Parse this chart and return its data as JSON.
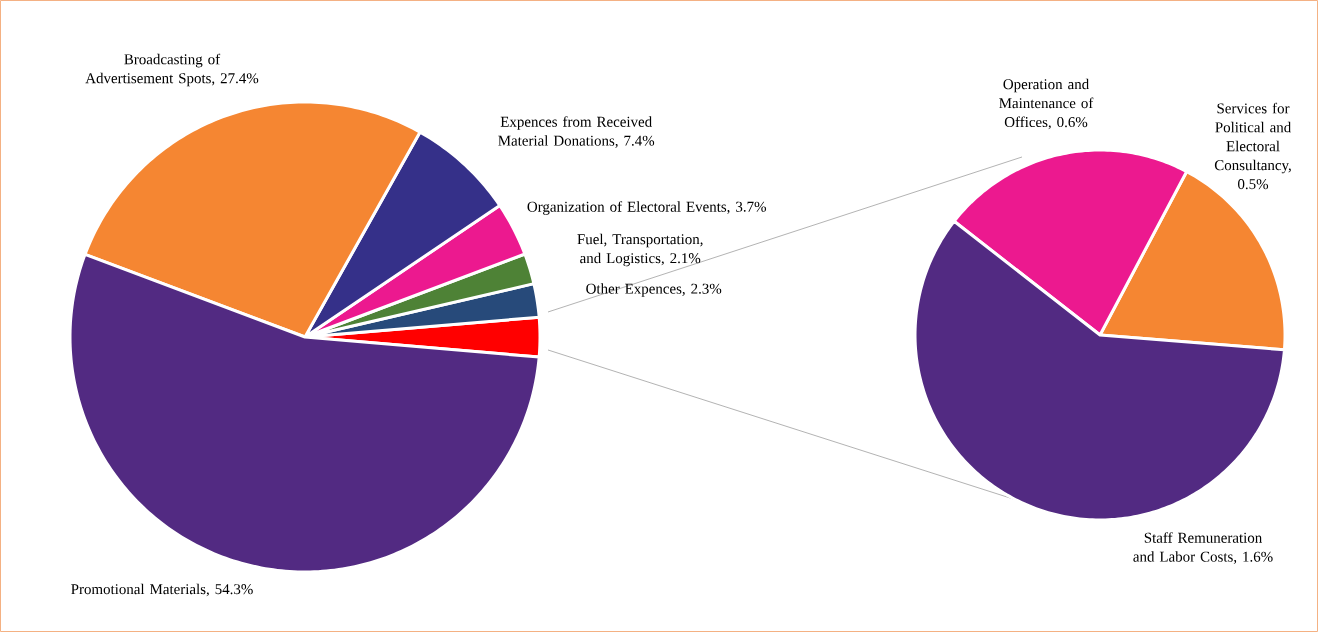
{
  "chart_data": [
    {
      "type": "pie",
      "categories": [
        null,
        "Other Expences, 2.3%",
        "Fuel, Transportation, and Logistics,  2.1%",
        "Organization of Electoral Events, 3.7%",
        "Expences from Received Material Donations, 7.4%",
        "Broadcasting of Advertisement Spots, 27.4%",
        "Promotional Materials, 54.3%"
      ],
      "values": [
        2.7,
        2.3,
        2.1,
        3.7,
        7.4,
        27.4,
        54.3
      ],
      "colors": [
        "#ff0000",
        "#274a7a",
        "#4e8236",
        "#ec198f",
        "#353089",
        "#f58632",
        "#522a82"
      ]
    },
    {
      "type": "pie",
      "categories": [
        "Services for Political and Electoral Consultancy, 0.5%",
        "Operation and Maintenance of Offices, 0.6%",
        "Staff Remuneration and Labor Costs, 1.6%"
      ],
      "values": [
        0.5,
        0.6,
        1.6
      ],
      "colors": [
        "#f58632",
        "#ec198f",
        "#522a82"
      ]
    }
  ]
}
